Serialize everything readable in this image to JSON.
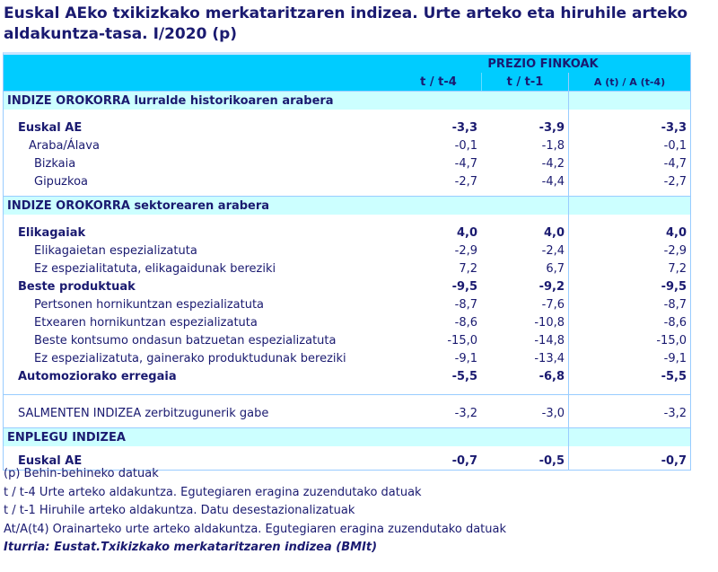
{
  "title": "Euskal AEko txikizkako merkataritzaren indizea. Urte arteko eta hiruhile arteko aldakuntza-tasa. I/2020 (p)",
  "header": {
    "group": "PREZIO FINKOAK",
    "columns": [
      "t / t-4",
      "t / t-1",
      "A (t) / A (t-4)"
    ]
  },
  "rows": [
    {
      "type": "sec",
      "label": "INDIZE OROKORRA lurralde historikoaren arabera"
    },
    {
      "type": "gap"
    },
    {
      "type": "bold l1",
      "label": "Euskal AE",
      "values": [
        "-3,3",
        "-3,9",
        "-3,3"
      ]
    },
    {
      "type": "l2b",
      "label": "Araba/Álava",
      "values": [
        "-0,1",
        "-1,8",
        "-0,1"
      ]
    },
    {
      "type": "l2",
      "label": "Bizkaia",
      "values": [
        "-4,7",
        "-4,2",
        "-4,7"
      ]
    },
    {
      "type": "l2",
      "label": "Gipuzkoa",
      "values": [
        "-2,7",
        "-4,4",
        "-2,7"
      ]
    },
    {
      "type": "gap6"
    },
    {
      "type": "sec",
      "label": "INDIZE OROKORRA sektorearen arabera"
    },
    {
      "type": "gap"
    },
    {
      "type": "bold l1",
      "label": "Elikagaiak",
      "values": [
        "4,0",
        "4,0",
        "4,0"
      ]
    },
    {
      "type": "l2",
      "label": "Elikagaietan espezializatuta",
      "values": [
        "-2,9",
        "-2,4",
        "-2,9"
      ]
    },
    {
      "type": "l2",
      "label": "Ez espezialitatuta, elikagaidunak bereziki",
      "values": [
        "7,2",
        "6,7",
        "7,2"
      ]
    },
    {
      "type": "bold l1",
      "label": "Beste produktuak",
      "values": [
        "-9,5",
        "-9,2",
        "-9,5"
      ]
    },
    {
      "type": "l2",
      "label": "Pertsonen hornikuntzan espezializatuta",
      "values": [
        "-8,7",
        "-7,6",
        "-8,7"
      ]
    },
    {
      "type": "l2",
      "label": "Etxearen hornikuntzan espezializatuta",
      "values": [
        "-8,6",
        "-10,8",
        "-8,6"
      ]
    },
    {
      "type": "l2",
      "label": "Beste kontsumo ondasun batzuetan espezializatuta",
      "values": [
        "-15,0",
        "-14,8",
        "-15,0"
      ]
    },
    {
      "type": "l2",
      "label": "Ez espezializatuta, gainerako produktudunak bereziki",
      "values": [
        "-9,1",
        "-13,4",
        "-9,1"
      ]
    },
    {
      "type": "bold l1",
      "label": "Automoziorako erregaia",
      "values": [
        "-5,5",
        "-6,8",
        "-5,5"
      ]
    },
    {
      "type": "gap sepb"
    },
    {
      "type": "gap"
    },
    {
      "type": "l1",
      "label": "SALMENTEN INDIZEA zerbitzugunerik gabe",
      "values": [
        "-3,2",
        "-3,0",
        "-3,2"
      ]
    },
    {
      "type": "gap6"
    },
    {
      "type": "sec",
      "label": "ENPLEGU INDIZEA"
    },
    {
      "type": "gap6"
    },
    {
      "type": "bold l1",
      "label": "Euskal AE",
      "values": [
        "-0,7",
        "-0,5",
        "-0,7"
      ]
    }
  ],
  "notes": [
    "(p) Behin-behineko datuak",
    "t / t-4 Urte arteko aldakuntza. Egutegiaren eragina zuzendutako datuak",
    "t / t-1 Hiruhile arteko aldakuntza. Datu desestazionalizatuak",
    "At/A(t4) Orainarteko urte arteko aldakuntza. Egutegiaren eragina zuzendutako datuak"
  ],
  "source": "Iturria: Eustat.Txikizkako merkataritzaren indizea (BMIt)",
  "colors": {
    "header": "#00ccff",
    "section": "#ccffff",
    "text": "#1a1a70",
    "border": "#99ccff"
  }
}
